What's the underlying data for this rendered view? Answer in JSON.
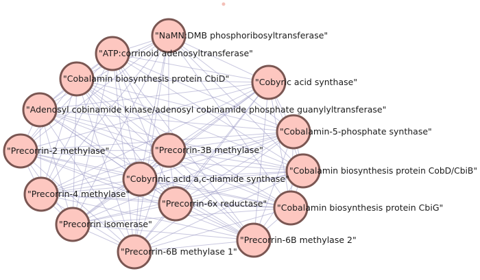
{
  "graph": {
    "node_color": "#fdc7c0",
    "node_border_color": "#7a5652",
    "edge_color": "#9b99c4",
    "background": "#ffffff",
    "nodes": [
      {
        "id": "n1",
        "label": "\"NaMN:DMB phosphoribosyltransferase\""
      },
      {
        "id": "n2",
        "label": "\"ATP:corrinoid adenosyltransferase\""
      },
      {
        "id": "n3",
        "label": "\"Cobalamin biosynthesis protein CbiD\""
      },
      {
        "id": "n4",
        "label": "\"Cobyric acid synthase\""
      },
      {
        "id": "n5",
        "label": "\"Adenosyl cobinamide kinase/adenosyl cobinamide phosphate guanylyltransferase\""
      },
      {
        "id": "n6",
        "label": "\"Cobalamin-5-phosphate synthase\""
      },
      {
        "id": "n7",
        "label": "\"Precorrin-2 methylase\""
      },
      {
        "id": "n8",
        "label": "\"Precorrin-3B methylase\""
      },
      {
        "id": "n9",
        "label": "\"Cobalamin biosynthesis protein CobD/CbiB\""
      },
      {
        "id": "n10",
        "label": "\"Cobyrinic acid a,c-diamide synthase\""
      },
      {
        "id": "n11",
        "label": "\"Precorrin-4 methylase\""
      },
      {
        "id": "n12",
        "label": "\"Precorrin-6x reductase\""
      },
      {
        "id": "n13",
        "label": "\"Cobalamin biosynthesis protein CbiG\""
      },
      {
        "id": "n14",
        "label": "\"Precorrin isomerase\""
      },
      {
        "id": "n15",
        "label": "\"Precorrin-6B methylase 2\""
      },
      {
        "id": "n16",
        "label": "\"Precorrin-6B methylase 1\""
      }
    ],
    "edges": [
      [
        "n1",
        "n2"
      ],
      [
        "n1",
        "n3"
      ],
      [
        "n1",
        "n4"
      ],
      [
        "n1",
        "n5"
      ],
      [
        "n1",
        "n6"
      ],
      [
        "n1",
        "n7"
      ],
      [
        "n1",
        "n8"
      ],
      [
        "n1",
        "n9"
      ],
      [
        "n1",
        "n10"
      ],
      [
        "n1",
        "n11"
      ],
      [
        "n1",
        "n13"
      ],
      [
        "n1",
        "n14"
      ],
      [
        "n1",
        "n16"
      ],
      [
        "n2",
        "n3"
      ],
      [
        "n2",
        "n4"
      ],
      [
        "n2",
        "n5"
      ],
      [
        "n2",
        "n6"
      ],
      [
        "n2",
        "n7"
      ],
      [
        "n2",
        "n8"
      ],
      [
        "n2",
        "n9"
      ],
      [
        "n2",
        "n10"
      ],
      [
        "n2",
        "n11"
      ],
      [
        "n2",
        "n12"
      ],
      [
        "n2",
        "n14"
      ],
      [
        "n2",
        "n15"
      ],
      [
        "n2",
        "n16"
      ],
      [
        "n3",
        "n4"
      ],
      [
        "n3",
        "n5"
      ],
      [
        "n3",
        "n6"
      ],
      [
        "n3",
        "n7"
      ],
      [
        "n3",
        "n8"
      ],
      [
        "n3",
        "n9"
      ],
      [
        "n3",
        "n10"
      ],
      [
        "n3",
        "n11"
      ],
      [
        "n3",
        "n12"
      ],
      [
        "n3",
        "n13"
      ],
      [
        "n3",
        "n14"
      ],
      [
        "n3",
        "n15"
      ],
      [
        "n3",
        "n16"
      ],
      [
        "n4",
        "n5"
      ],
      [
        "n4",
        "n6"
      ],
      [
        "n4",
        "n7"
      ],
      [
        "n4",
        "n8"
      ],
      [
        "n4",
        "n9"
      ],
      [
        "n4",
        "n10"
      ],
      [
        "n4",
        "n11"
      ],
      [
        "n4",
        "n12"
      ],
      [
        "n4",
        "n13"
      ],
      [
        "n4",
        "n14"
      ],
      [
        "n4",
        "n15"
      ],
      [
        "n4",
        "n16"
      ],
      [
        "n5",
        "n6"
      ],
      [
        "n5",
        "n7"
      ],
      [
        "n5",
        "n8"
      ],
      [
        "n5",
        "n9"
      ],
      [
        "n5",
        "n10"
      ],
      [
        "n5",
        "n11"
      ],
      [
        "n5",
        "n12"
      ],
      [
        "n5",
        "n13"
      ],
      [
        "n5",
        "n14"
      ],
      [
        "n5",
        "n15"
      ],
      [
        "n5",
        "n16"
      ],
      [
        "n6",
        "n7"
      ],
      [
        "n6",
        "n8"
      ],
      [
        "n6",
        "n9"
      ],
      [
        "n6",
        "n10"
      ],
      [
        "n6",
        "n11"
      ],
      [
        "n6",
        "n12"
      ],
      [
        "n6",
        "n13"
      ],
      [
        "n6",
        "n14"
      ],
      [
        "n6",
        "n15"
      ],
      [
        "n6",
        "n16"
      ],
      [
        "n7",
        "n8"
      ],
      [
        "n7",
        "n9"
      ],
      [
        "n7",
        "n10"
      ],
      [
        "n7",
        "n11"
      ],
      [
        "n7",
        "n12"
      ],
      [
        "n7",
        "n13"
      ],
      [
        "n7",
        "n14"
      ],
      [
        "n7",
        "n15"
      ],
      [
        "n7",
        "n16"
      ],
      [
        "n8",
        "n9"
      ],
      [
        "n8",
        "n10"
      ],
      [
        "n8",
        "n11"
      ],
      [
        "n8",
        "n12"
      ],
      [
        "n8",
        "n13"
      ],
      [
        "n8",
        "n14"
      ],
      [
        "n8",
        "n15"
      ],
      [
        "n8",
        "n16"
      ],
      [
        "n9",
        "n10"
      ],
      [
        "n9",
        "n11"
      ],
      [
        "n9",
        "n12"
      ],
      [
        "n9",
        "n13"
      ],
      [
        "n9",
        "n14"
      ],
      [
        "n9",
        "n15"
      ],
      [
        "n9",
        "n16"
      ],
      [
        "n10",
        "n11"
      ],
      [
        "n10",
        "n12"
      ],
      [
        "n10",
        "n13"
      ],
      [
        "n10",
        "n14"
      ],
      [
        "n10",
        "n15"
      ],
      [
        "n10",
        "n16"
      ],
      [
        "n11",
        "n12"
      ],
      [
        "n11",
        "n13"
      ],
      [
        "n11",
        "n14"
      ],
      [
        "n11",
        "n15"
      ],
      [
        "n11",
        "n16"
      ],
      [
        "n12",
        "n13"
      ],
      [
        "n12",
        "n14"
      ],
      [
        "n12",
        "n15"
      ],
      [
        "n12",
        "n16"
      ],
      [
        "n13",
        "n14"
      ],
      [
        "n13",
        "n15"
      ],
      [
        "n13",
        "n16"
      ],
      [
        "n14",
        "n15"
      ],
      [
        "n14",
        "n16"
      ],
      [
        "n15",
        "n16"
      ]
    ]
  }
}
